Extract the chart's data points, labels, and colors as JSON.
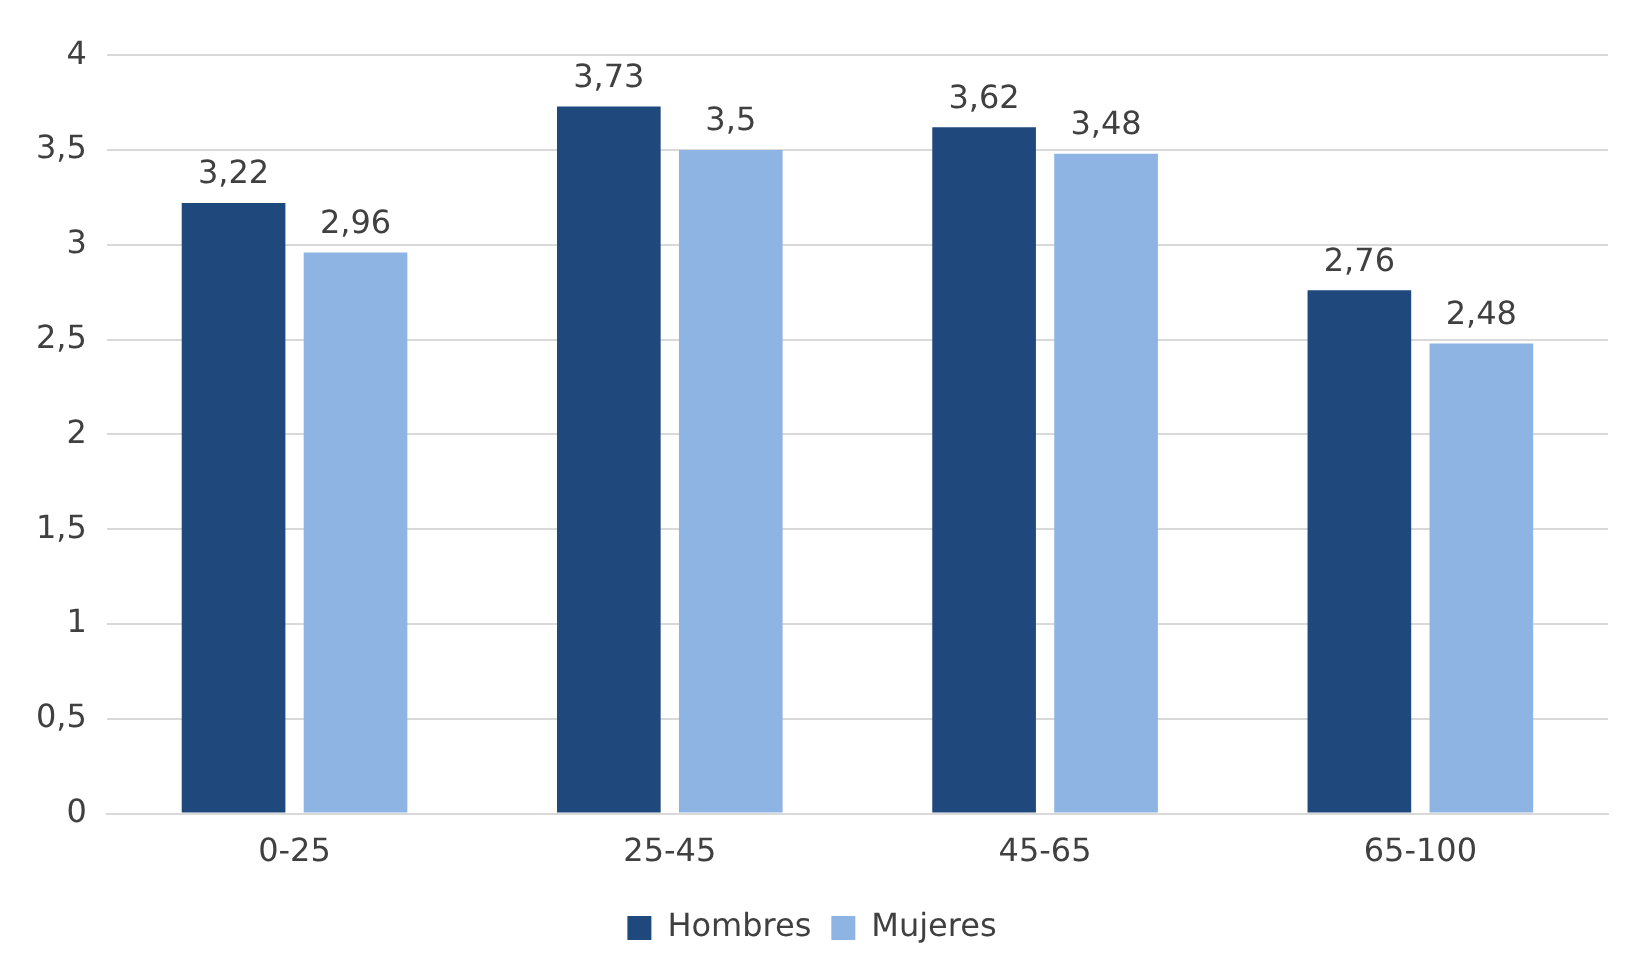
{
  "chart_data": {
    "type": "bar",
    "categories": [
      "0-25",
      "25-45",
      "45-65",
      "65-100"
    ],
    "series": [
      {
        "name": "Hombres",
        "color": "#1f497d",
        "values": [
          3.22,
          3.73,
          3.62,
          2.76
        ],
        "value_labels": [
          "3,22",
          "3,73",
          "3,62",
          "2,76"
        ]
      },
      {
        "name": "Mujeres",
        "color": "#8db4e2",
        "values": [
          2.96,
          3.5,
          3.48,
          2.48
        ],
        "value_labels": [
          "2,96",
          "3,5",
          "3,48",
          "2,48"
        ]
      }
    ],
    "ylim": [
      0,
      4
    ],
    "yticks": [
      0,
      {
        "value": 0.5,
        "label": "0,5"
      },
      1,
      {
        "value": 1.5,
        "label": "1,5"
      },
      2,
      {
        "value": 2.5,
        "label": "2,5"
      },
      3,
      {
        "value": 3.5,
        "label": "3,5"
      },
      4
    ],
    "grid": "y",
    "legend": "bottom"
  }
}
